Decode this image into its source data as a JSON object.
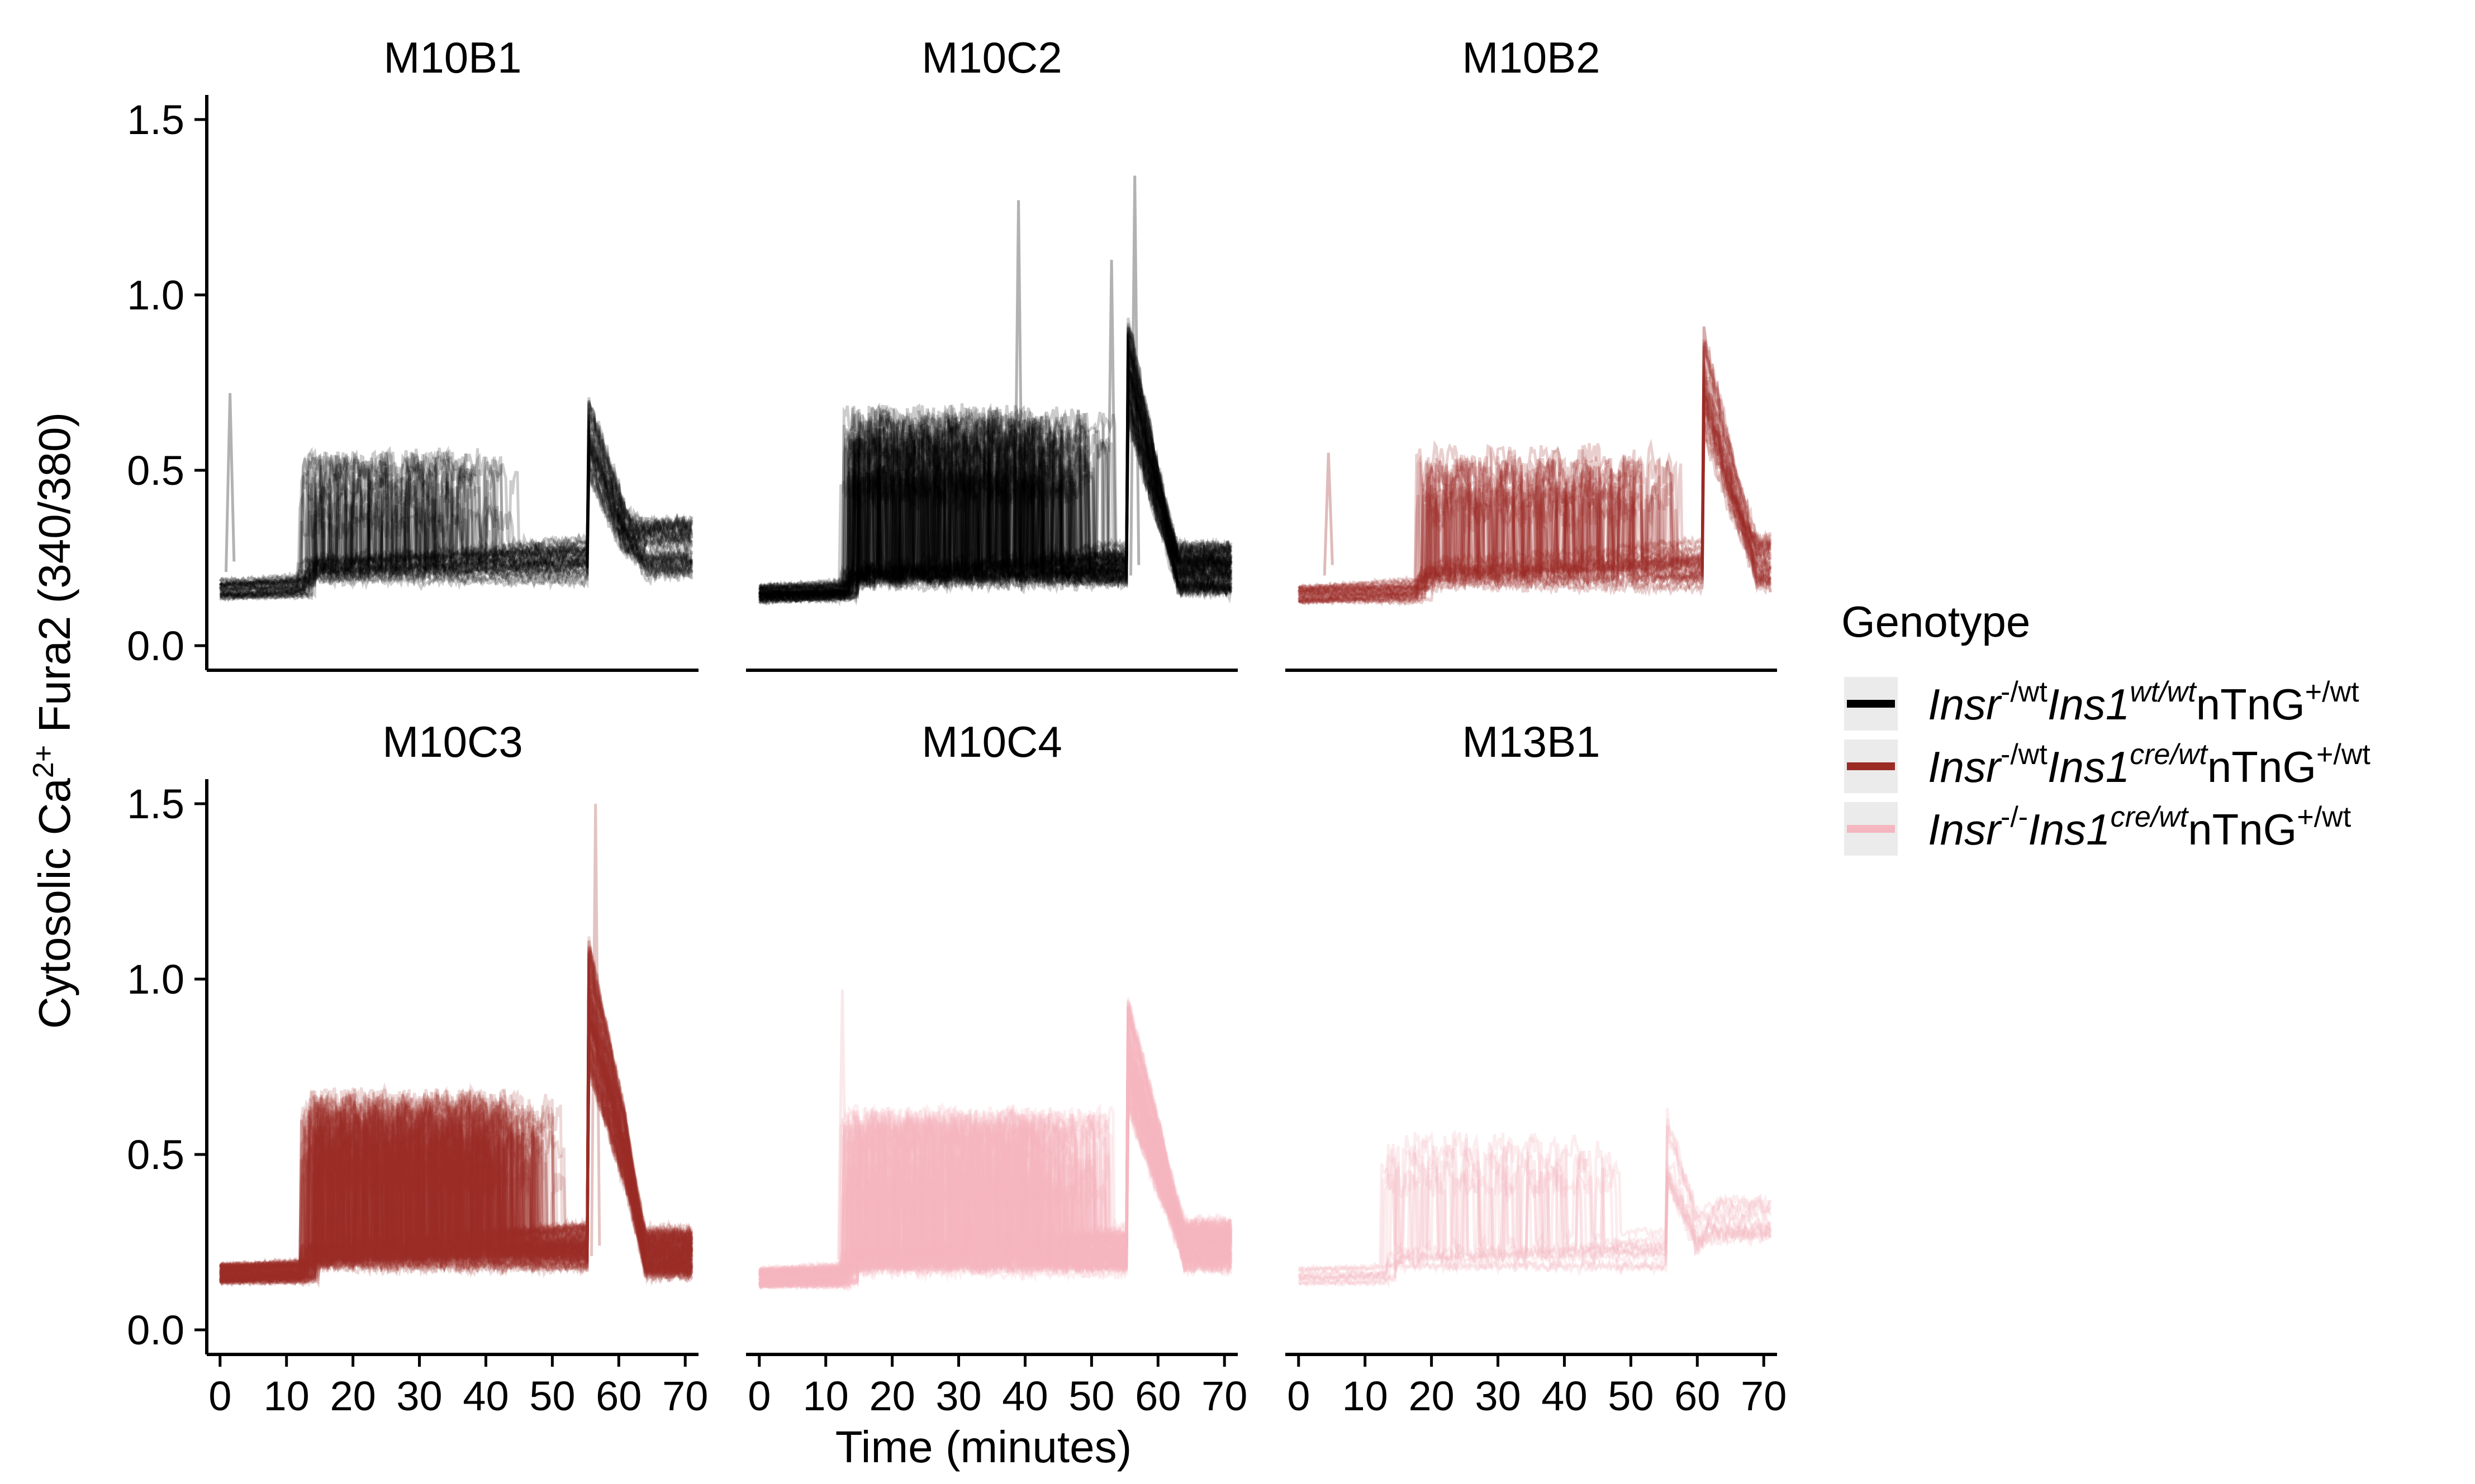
{
  "chart_data": {
    "type": "line",
    "layout": "facet-grid-2x3",
    "x_axis": {
      "label": "Time (minutes)",
      "range": [
        -2,
        72
      ],
      "ticks": [
        0,
        10,
        20,
        30,
        40,
        50,
        60,
        70
      ],
      "tick_labels": [
        "0",
        "10",
        "20",
        "30",
        "40",
        "50",
        "60",
        "70"
      ]
    },
    "y_axis": {
      "label_main": "Cytosolic Ca",
      "label_sup": "2+",
      "label_rest": " Fura2 (340/380)",
      "range": [
        -0.07,
        1.57
      ],
      "ticks": [
        0.0,
        0.5,
        1.0,
        1.5
      ],
      "tick_labels": [
        "0.0",
        "0.5",
        "1.0",
        "1.5"
      ]
    },
    "grid": false,
    "legend": {
      "title": "Genotype",
      "placement": "right",
      "entries": [
        {
          "key": "g1",
          "color": "#000000",
          "parts": [
            {
              "text": "Insr",
              "style": "italic"
            },
            {
              "text": "-/wt",
              "style": "sup"
            },
            {
              "text": "Ins1",
              "style": "italic"
            },
            {
              "text": "wt/wt",
              "style": "sup-italic"
            },
            {
              "text": "nTnG",
              "style": "normal"
            },
            {
              "text": "+/wt",
              "style": "sup"
            }
          ]
        },
        {
          "key": "g2",
          "color": "#9b2b25",
          "parts": [
            {
              "text": "Insr",
              "style": "italic"
            },
            {
              "text": "-/wt",
              "style": "sup"
            },
            {
              "text": "Ins1",
              "style": "italic"
            },
            {
              "text": "cre/wt",
              "style": "sup-italic"
            },
            {
              "text": "nTnG",
              "style": "normal"
            },
            {
              "text": "+/wt",
              "style": "sup"
            }
          ]
        },
        {
          "key": "g3",
          "color": "#f4b6bf",
          "parts": [
            {
              "text": "Insr",
              "style": "italic"
            },
            {
              "text": "-/-",
              "style": "sup"
            },
            {
              "text": "Ins1",
              "style": "italic"
            },
            {
              "text": "cre/wt",
              "style": "sup-italic"
            },
            {
              "text": "nTnG",
              "style": "normal"
            },
            {
              "text": "+/wt",
              "style": "sup"
            }
          ]
        }
      ]
    },
    "panels": [
      {
        "title": "M10B1",
        "genotype": "g1",
        "traces": 40,
        "trace_alpha": 0.2,
        "baseline": 0.16,
        "glucose_on": 11.5,
        "oscillation_level": 0.45,
        "oscillation_end": 46,
        "active_fraction": 0.6,
        "kcl_on": 55.5,
        "kcl_off": 61,
        "kcl_peak": 0.65,
        "peak_max": 0.72,
        "tail_level": 0.25,
        "spikes": [
          [
            1.5,
            0.72
          ]
        ]
      },
      {
        "title": "M10C2",
        "genotype": "g1",
        "traces": 70,
        "trace_alpha": 0.2,
        "baseline": 0.15,
        "glucose_on": 12,
        "oscillation_level": 0.55,
        "oscillation_end": 54,
        "active_fraction": 0.9,
        "kcl_on": 55.5,
        "kcl_off": 60,
        "kcl_peak": 0.85,
        "peak_max": 1.34,
        "tail_level": 0.2,
        "spikes": [
          [
            39,
            1.27
          ],
          [
            53,
            1.1
          ],
          [
            56.5,
            1.34
          ]
        ]
      },
      {
        "title": "M10B2",
        "genotype": "g2",
        "traces": 35,
        "trace_alpha": 0.22,
        "baseline": 0.15,
        "glucose_on": 17.5,
        "oscillation_level": 0.45,
        "oscillation_end": 58,
        "active_fraction": 0.7,
        "kcl_on": 61,
        "kcl_off": 66,
        "kcl_peak": 0.8,
        "peak_max": 1.06,
        "tail_level": 0.22,
        "spikes": [
          [
            4.5,
            0.55
          ]
        ]
      },
      {
        "title": "M10C3",
        "genotype": "g2",
        "traces": 120,
        "trace_alpha": 0.18,
        "baseline": 0.16,
        "glucose_on": 12,
        "oscillation_level": 0.55,
        "oscillation_end": 52,
        "active_fraction": 0.85,
        "kcl_on": 55.5,
        "kcl_off": 61,
        "kcl_peak": 1.0,
        "peak_max": 1.5,
        "tail_level": 0.2,
        "spikes": [
          [
            56.5,
            1.5
          ]
        ]
      },
      {
        "title": "M10C4",
        "genotype": "g3",
        "traces": 110,
        "trace_alpha": 0.22,
        "baseline": 0.15,
        "glucose_on": 12,
        "oscillation_level": 0.5,
        "oscillation_end": 54,
        "active_fraction": 0.8,
        "kcl_on": 55.5,
        "kcl_off": 61,
        "kcl_peak": 0.85,
        "peak_max": 1.1,
        "tail_level": 0.22,
        "spikes": [
          [
            12.5,
            0.97
          ]
        ]
      },
      {
        "title": "M13B1",
        "genotype": "g3",
        "traces": 12,
        "trace_alpha": 0.25,
        "baseline": 0.15,
        "glucose_on": 12,
        "oscillation_level": 0.45,
        "oscillation_end": 52,
        "active_fraction": 0.5,
        "kcl_on": 55.5,
        "kcl_off": 60,
        "kcl_peak": 0.55,
        "peak_max": 0.63,
        "tail_level": 0.28,
        "spikes": []
      }
    ]
  }
}
